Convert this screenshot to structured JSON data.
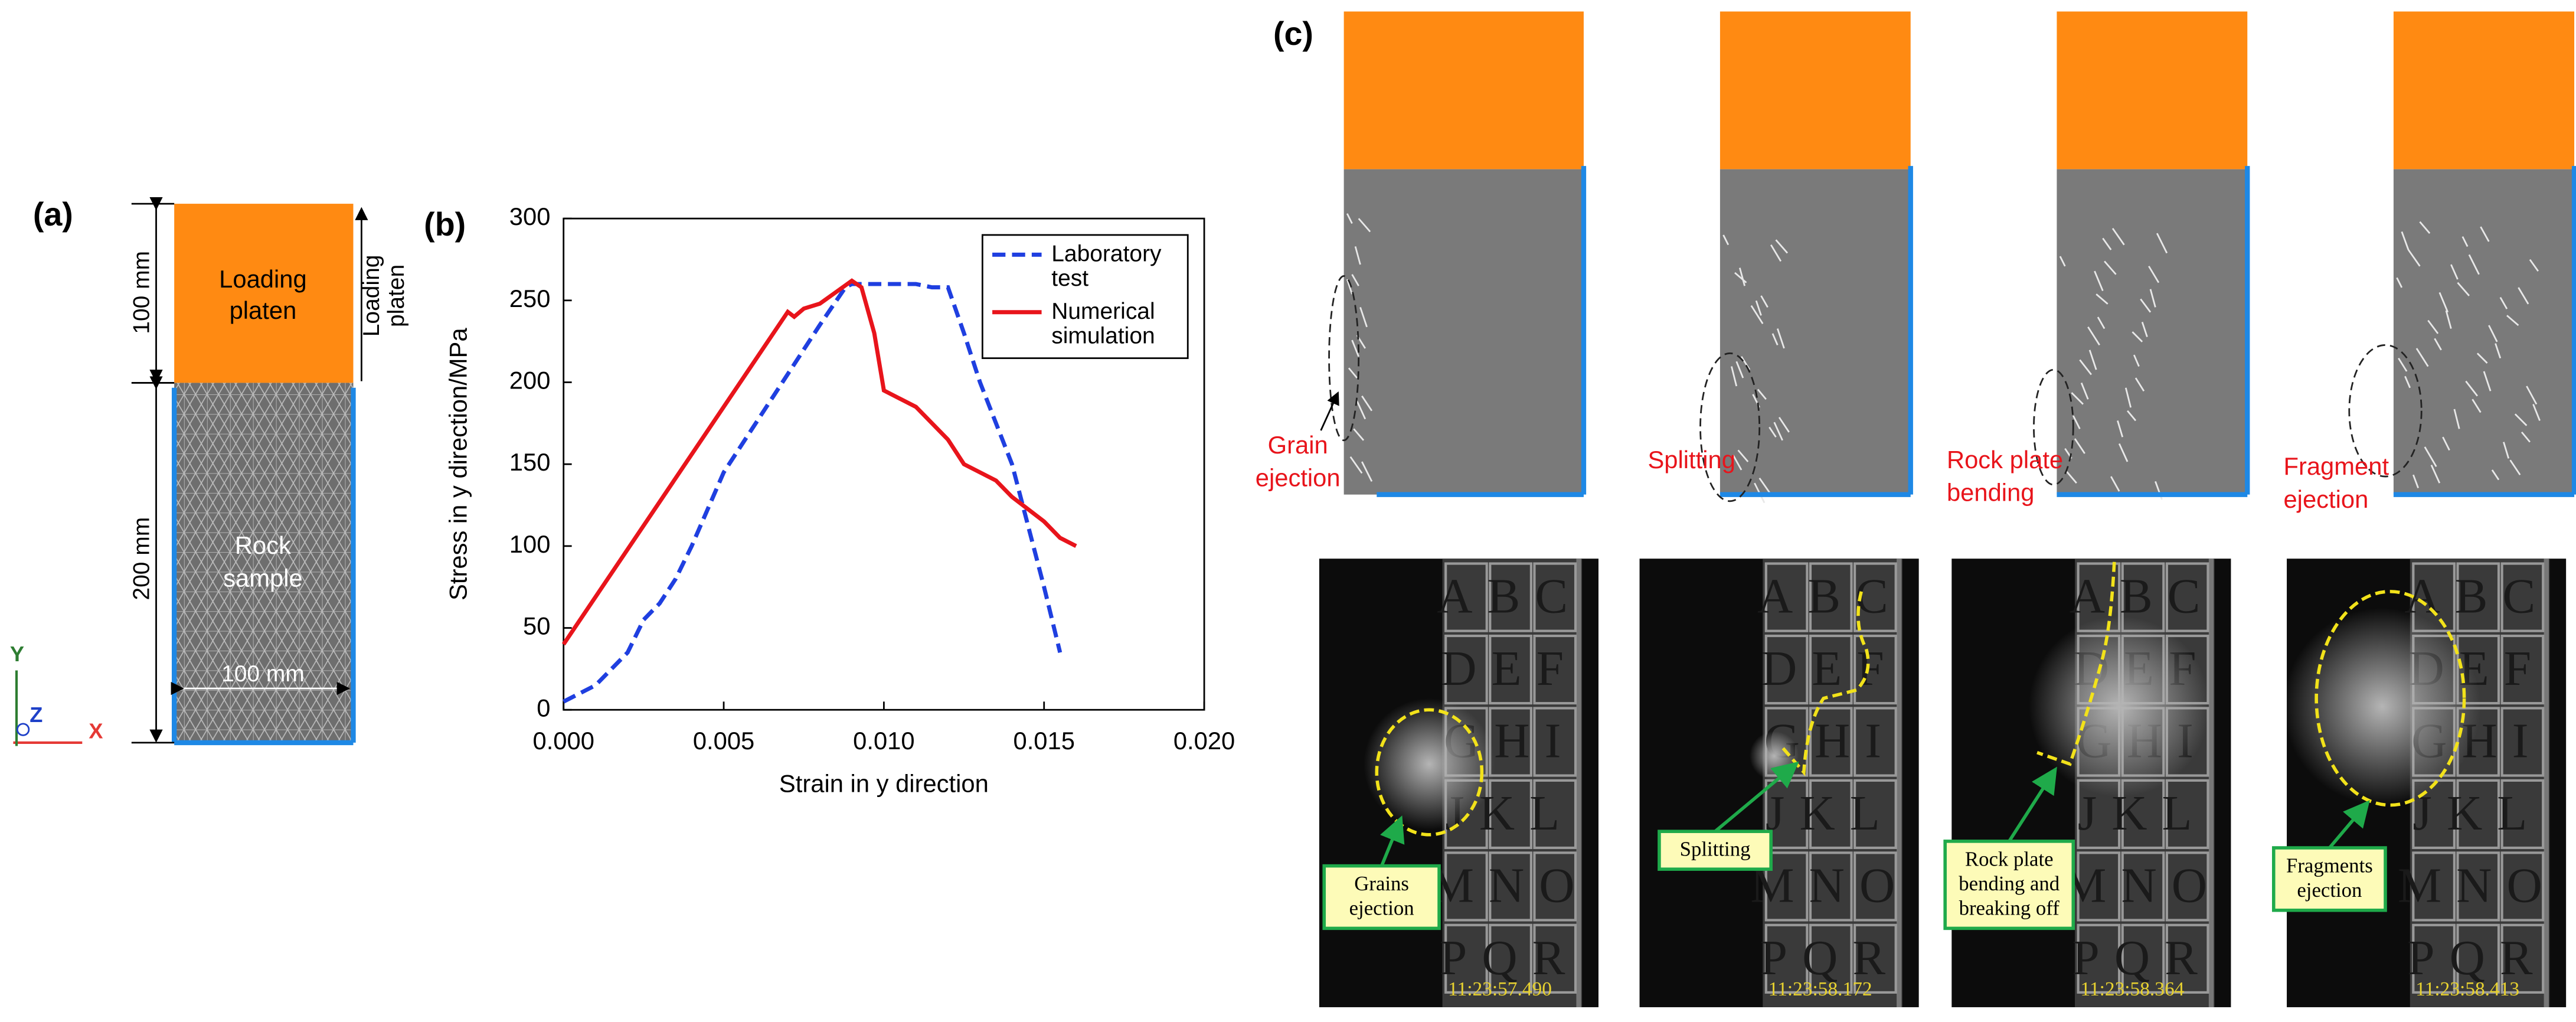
{
  "panel_a": {
    "label": "(a)",
    "platen_lines": [
      "Loading",
      "platen"
    ],
    "sample_lines": [
      "Rock",
      "sample"
    ],
    "platen_height": "100 mm",
    "sample_height": "200 mm",
    "sample_width": "100 mm",
    "load_lines": [
      "Loading",
      "platen"
    ],
    "axes": {
      "y": "Y",
      "z": "Z",
      "x": "X"
    }
  },
  "chart_data": {
    "type": "line",
    "label": "(b)",
    "x_label": "Strain in y direction",
    "y_label": "Stress in y direction/MPa",
    "xlim": [
      0,
      0.02
    ],
    "ylim": [
      0,
      300
    ],
    "xticks": [
      {
        "value": 0,
        "label": "0.000"
      },
      {
        "value": 0.005,
        "label": "0.005"
      },
      {
        "value": 0.01,
        "label": "0.010"
      },
      {
        "value": 0.015,
        "label": "0.015"
      },
      {
        "value": 0.02,
        "label": "0.020"
      }
    ],
    "yticks": [
      0,
      50,
      100,
      150,
      200,
      250,
      300
    ],
    "grid": false,
    "legend": "upper right",
    "series": [
      {
        "name": "Laboratory test",
        "color": "#1f3fe0",
        "line_style": "dashed",
        "x": [
          0,
          0.001,
          0.002,
          0.0025,
          0.003,
          0.0035,
          0.004,
          0.005,
          0.006,
          0.007,
          0.008,
          0.0088,
          0.009,
          0.011,
          0.0115,
          0.012,
          0.0125,
          0.013,
          0.014,
          0.015,
          0.0155
        ],
        "values": [
          5,
          15,
          35,
          55,
          65,
          80,
          100,
          145,
          175,
          205,
          235,
          258,
          260,
          260,
          258,
          258,
          230,
          200,
          150,
          75,
          35
        ]
      },
      {
        "name": "Numerical simulation",
        "color": "#e8141b",
        "line_style": "solid",
        "x": [
          0,
          0.007,
          0.0072,
          0.0075,
          0.008,
          0.0085,
          0.009,
          0.0093,
          0.0097,
          0.01,
          0.0105,
          0.011,
          0.0115,
          0.012,
          0.0125,
          0.013,
          0.0135,
          0.014,
          0.015,
          0.0155,
          0.016
        ],
        "values": [
          40,
          243,
          240,
          245,
          248,
          255,
          262,
          258,
          230,
          195,
          190,
          185,
          175,
          165,
          150,
          145,
          140,
          130,
          115,
          105,
          100
        ]
      }
    ]
  },
  "panel_c": {
    "label": "(c)",
    "simulations": [
      {
        "label_lines": [
          "Grain",
          "ejection"
        ]
      },
      {
        "label_lines": [
          "Splitting"
        ]
      },
      {
        "label_lines": [
          "Rock plate",
          "bending"
        ]
      },
      {
        "label_lines": [
          "Fragment",
          "ejection"
        ]
      }
    ],
    "grid_rows": [
      "ABC",
      "DEF",
      "GHI",
      "JKL",
      "MNO",
      "PQR"
    ],
    "photos": [
      {
        "callout_lines": [
          "Grains",
          "ejection"
        ],
        "time": "11:23:57.490"
      },
      {
        "callout_lines": [
          "Splitting"
        ],
        "time": "11:23:58.172"
      },
      {
        "callout_lines": [
          "Rock plate",
          "bending and",
          "breaking off"
        ],
        "time": "11:23:58.364"
      },
      {
        "callout_lines": [
          "Fragments",
          "ejection"
        ],
        "time": "11:23:58.413"
      }
    ]
  }
}
